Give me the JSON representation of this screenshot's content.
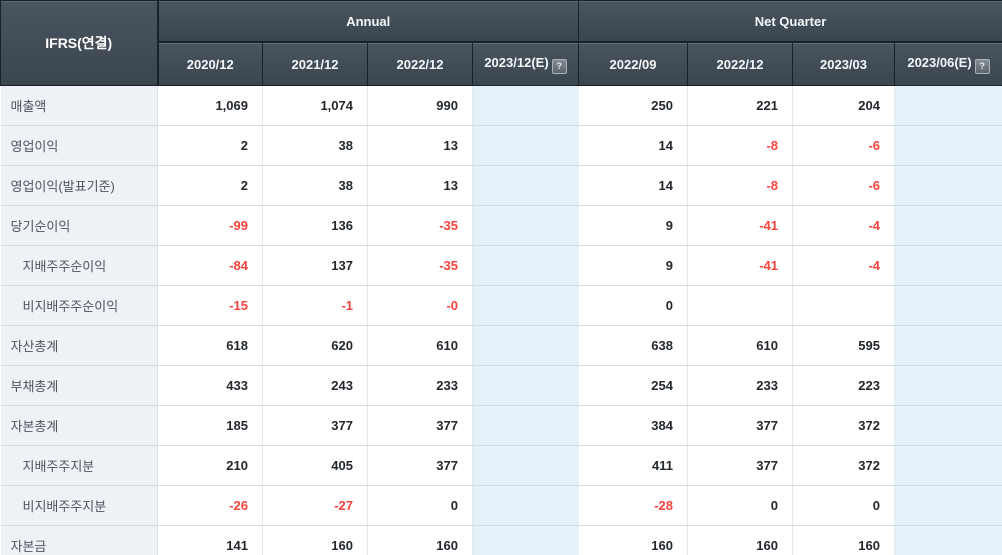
{
  "table": {
    "corner_label": "IFRS(연결)",
    "groups": [
      {
        "label": "Annual",
        "span": 4,
        "name": "column-group-annual"
      },
      {
        "label": "Net Quarter",
        "span": 4,
        "name": "column-group-net-quarter"
      }
    ],
    "columns": [
      "2020/12",
      "2021/12",
      "2022/12",
      "2023/12(E)",
      "2022/09",
      "2022/12",
      "2023/03",
      "2023/06(E)"
    ],
    "estimate_column_indexes": [
      3,
      7
    ],
    "help_icon_glyph": "?",
    "rows": [
      {
        "label": "매출액",
        "indent": false,
        "values": [
          "1,069",
          "1,074",
          "990",
          "",
          "250",
          "221",
          "204",
          ""
        ]
      },
      {
        "label": "영업이익",
        "indent": false,
        "values": [
          "2",
          "38",
          "13",
          "",
          "14",
          "-8",
          "-6",
          ""
        ]
      },
      {
        "label": "영업이익(발표기준)",
        "indent": false,
        "values": [
          "2",
          "38",
          "13",
          "",
          "14",
          "-8",
          "-6",
          ""
        ]
      },
      {
        "label": "당기순이익",
        "indent": false,
        "values": [
          "-99",
          "136",
          "-35",
          "",
          "9",
          "-41",
          "-4",
          ""
        ]
      },
      {
        "label": "지배주주순이익",
        "indent": true,
        "values": [
          "-84",
          "137",
          "-35",
          "",
          "9",
          "-41",
          "-4",
          ""
        ]
      },
      {
        "label": "비지배주주순이익",
        "indent": true,
        "values": [
          "-15",
          "-1",
          "-0",
          "",
          "0",
          "",
          "",
          ""
        ]
      },
      {
        "label": "자산총계",
        "indent": false,
        "values": [
          "618",
          "620",
          "610",
          "",
          "638",
          "610",
          "595",
          ""
        ]
      },
      {
        "label": "부채총계",
        "indent": false,
        "values": [
          "433",
          "243",
          "233",
          "",
          "254",
          "233",
          "223",
          ""
        ]
      },
      {
        "label": "자본총계",
        "indent": false,
        "values": [
          "185",
          "377",
          "377",
          "",
          "384",
          "377",
          "372",
          ""
        ]
      },
      {
        "label": "지배주주지분",
        "indent": true,
        "values": [
          "210",
          "405",
          "377",
          "",
          "411",
          "377",
          "372",
          ""
        ]
      },
      {
        "label": "비지배주주지분",
        "indent": true,
        "values": [
          "-26",
          "-27",
          "0",
          "",
          "-28",
          "0",
          "0",
          ""
        ]
      },
      {
        "label": "자본금",
        "indent": false,
        "values": [
          "141",
          "160",
          "160",
          "",
          "160",
          "160",
          "160",
          ""
        ]
      }
    ],
    "colors": {
      "header_bg_top": "#49555f",
      "header_bg_bottom": "#3a454e",
      "header_border": "#1a2128",
      "negative_text": "#f8423c",
      "estimate_column_bg": "#e4f1f8",
      "label_column_bg": "#eef1f6",
      "row_border": "#d5dbe1",
      "cell_border": "#e6e8eb",
      "number_text": "#23282d",
      "label_text": "#4d555d"
    }
  }
}
